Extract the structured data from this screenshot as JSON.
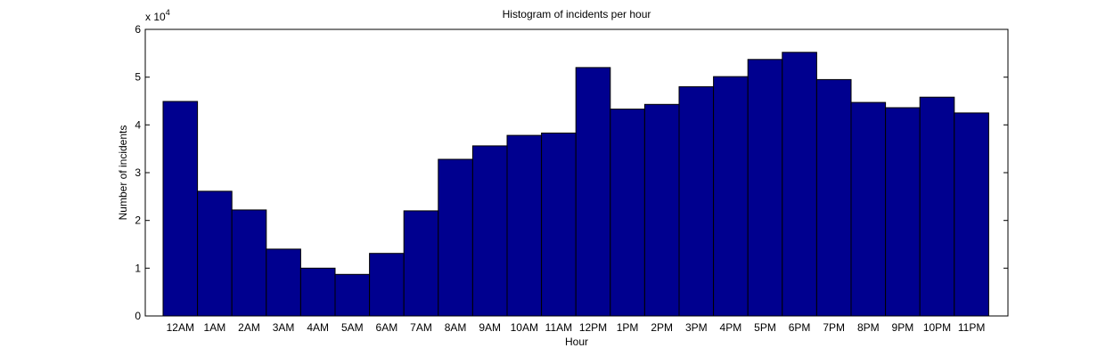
{
  "chart_data": {
    "type": "bar",
    "title": "Histogram of incidents per hour",
    "xlabel": "Hour",
    "ylabel": "Number of incidents",
    "y_exponent_label": "x 10",
    "y_exponent_power": "4",
    "y_tick_labels": [
      "0",
      "1",
      "2",
      "3",
      "4",
      "5",
      "6"
    ],
    "ylim": [
      0,
      60000
    ],
    "categories": [
      "12AM",
      "1AM",
      "2AM",
      "3AM",
      "4AM",
      "5AM",
      "6AM",
      "7AM",
      "8AM",
      "9AM",
      "10AM",
      "11AM",
      "12PM",
      "1PM",
      "2PM",
      "3PM",
      "4PM",
      "5PM",
      "6PM",
      "7PM",
      "8PM",
      "9PM",
      "10PM",
      "11PM"
    ],
    "values": [
      44900,
      26100,
      22200,
      14000,
      10000,
      8700,
      13100,
      22000,
      32800,
      35600,
      37800,
      38300,
      52000,
      43300,
      44300,
      48000,
      50100,
      53700,
      55200,
      49500,
      44700,
      43600,
      45800,
      42500
    ],
    "bar_color": "#00008f",
    "grid": false,
    "legend": "none"
  }
}
